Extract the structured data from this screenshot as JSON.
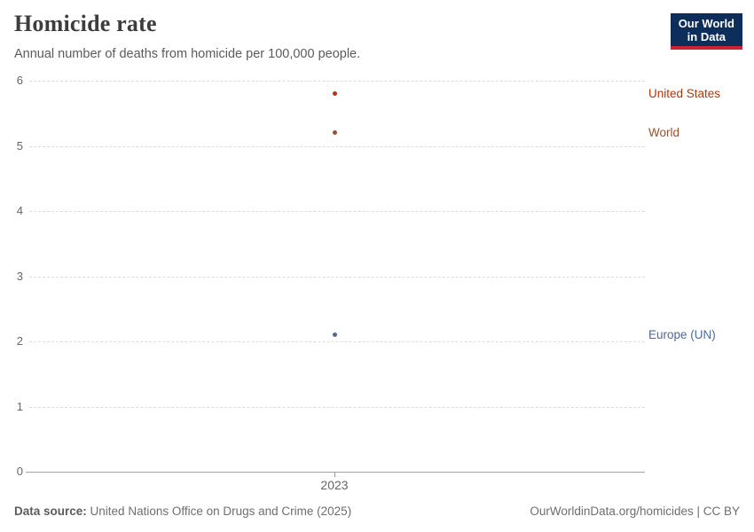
{
  "header": {
    "title": "Homicide rate",
    "subtitle": "Annual number of deaths from homicide per 100,000 people."
  },
  "logo": {
    "line1": "Our World",
    "line2": "in Data",
    "bg_color": "#0d2e5a",
    "accent_color": "#cf2331"
  },
  "chart_data": {
    "type": "scatter",
    "title": "Homicide rate",
    "subtitle": "Annual number of deaths from homicide per 100,000 people.",
    "x": [
      2023
    ],
    "x_tick_label": "2023",
    "series": [
      {
        "name": "United States",
        "values": [
          5.8
        ],
        "color": "#b13507"
      },
      {
        "name": "World",
        "values": [
          5.2
        ],
        "color": "#9a5129"
      },
      {
        "name": "Europe (UN)",
        "values": [
          2.1
        ],
        "color": "#4c6a9c"
      }
    ],
    "ylim": [
      0,
      6
    ],
    "yticks": [
      0,
      1,
      2,
      3,
      4,
      5,
      6
    ],
    "xlabel": "",
    "ylabel": "",
    "grid": "horizontal-dashed",
    "legend_position": "right-entity-labels"
  },
  "footer": {
    "source_label": "Data source:",
    "source_text": "United Nations Office on Drugs and Crime (2025)",
    "right_text": "OurWorldinData.org/homicides | CC BY"
  }
}
